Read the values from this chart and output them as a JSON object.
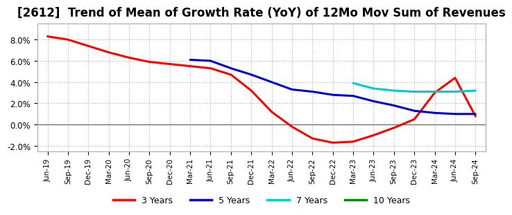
{
  "title": "[2612]  Trend of Mean of Growth Rate (YoY) of 12Mo Mov Sum of Revenues",
  "title_fontsize": 12,
  "background_color": "#ffffff",
  "plot_bg_color": "#ffffff",
  "grid_color": "#aaaaaa",
  "ylim": [
    -0.025,
    0.095
  ],
  "yticks": [
    -0.02,
    0.0,
    0.02,
    0.04,
    0.06,
    0.08
  ],
  "x_labels": [
    "Jun-19",
    "Sep-19",
    "Dec-19",
    "Mar-20",
    "Jun-20",
    "Sep-20",
    "Dec-20",
    "Mar-21",
    "Jun-21",
    "Sep-21",
    "Dec-21",
    "Mar-22",
    "Jun-22",
    "Sep-22",
    "Dec-22",
    "Mar-23",
    "Jun-23",
    "Sep-23",
    "Dec-23",
    "Mar-24",
    "Jun-24",
    "Sep-24"
  ],
  "series": {
    "3 Years": {
      "color": "#ff0000",
      "linewidth": 2.2,
      "data_x": [
        0,
        1,
        2,
        3,
        4,
        5,
        6,
        7,
        8,
        9,
        10,
        11,
        12,
        13,
        14,
        15,
        16,
        17,
        18,
        19,
        20,
        21
      ],
      "data_y": [
        0.083,
        0.08,
        0.074,
        0.068,
        0.063,
        0.059,
        0.057,
        0.055,
        0.053,
        0.047,
        0.032,
        0.012,
        -0.002,
        -0.013,
        -0.017,
        -0.016,
        -0.01,
        -0.003,
        0.005,
        0.03,
        0.044,
        0.008
      ]
    },
    "5 Years": {
      "color": "#0000cc",
      "linewidth": 2.2,
      "data_x": [
        7,
        8,
        9,
        10,
        11,
        12,
        13,
        14,
        15,
        16,
        17,
        18,
        19,
        20,
        21
      ],
      "data_y": [
        0.061,
        0.06,
        0.053,
        0.047,
        0.04,
        0.033,
        0.031,
        0.028,
        0.027,
        0.022,
        0.018,
        0.013,
        0.011,
        0.01,
        0.01
      ]
    },
    "7 Years": {
      "color": "#00cccc",
      "linewidth": 2.2,
      "data_x": [
        15,
        16,
        17,
        18,
        19,
        20,
        21
      ],
      "data_y": [
        0.039,
        0.034,
        0.032,
        0.031,
        0.031,
        0.031,
        0.032
      ]
    },
    "10 Years": {
      "color": "#008800",
      "linewidth": 2.2,
      "data_x": [],
      "data_y": []
    }
  },
  "legend_labels": [
    "3 Years",
    "5 Years",
    "7 Years",
    "10 Years"
  ],
  "legend_colors": [
    "#ff0000",
    "#0000cc",
    "#00cccc",
    "#008800"
  ]
}
